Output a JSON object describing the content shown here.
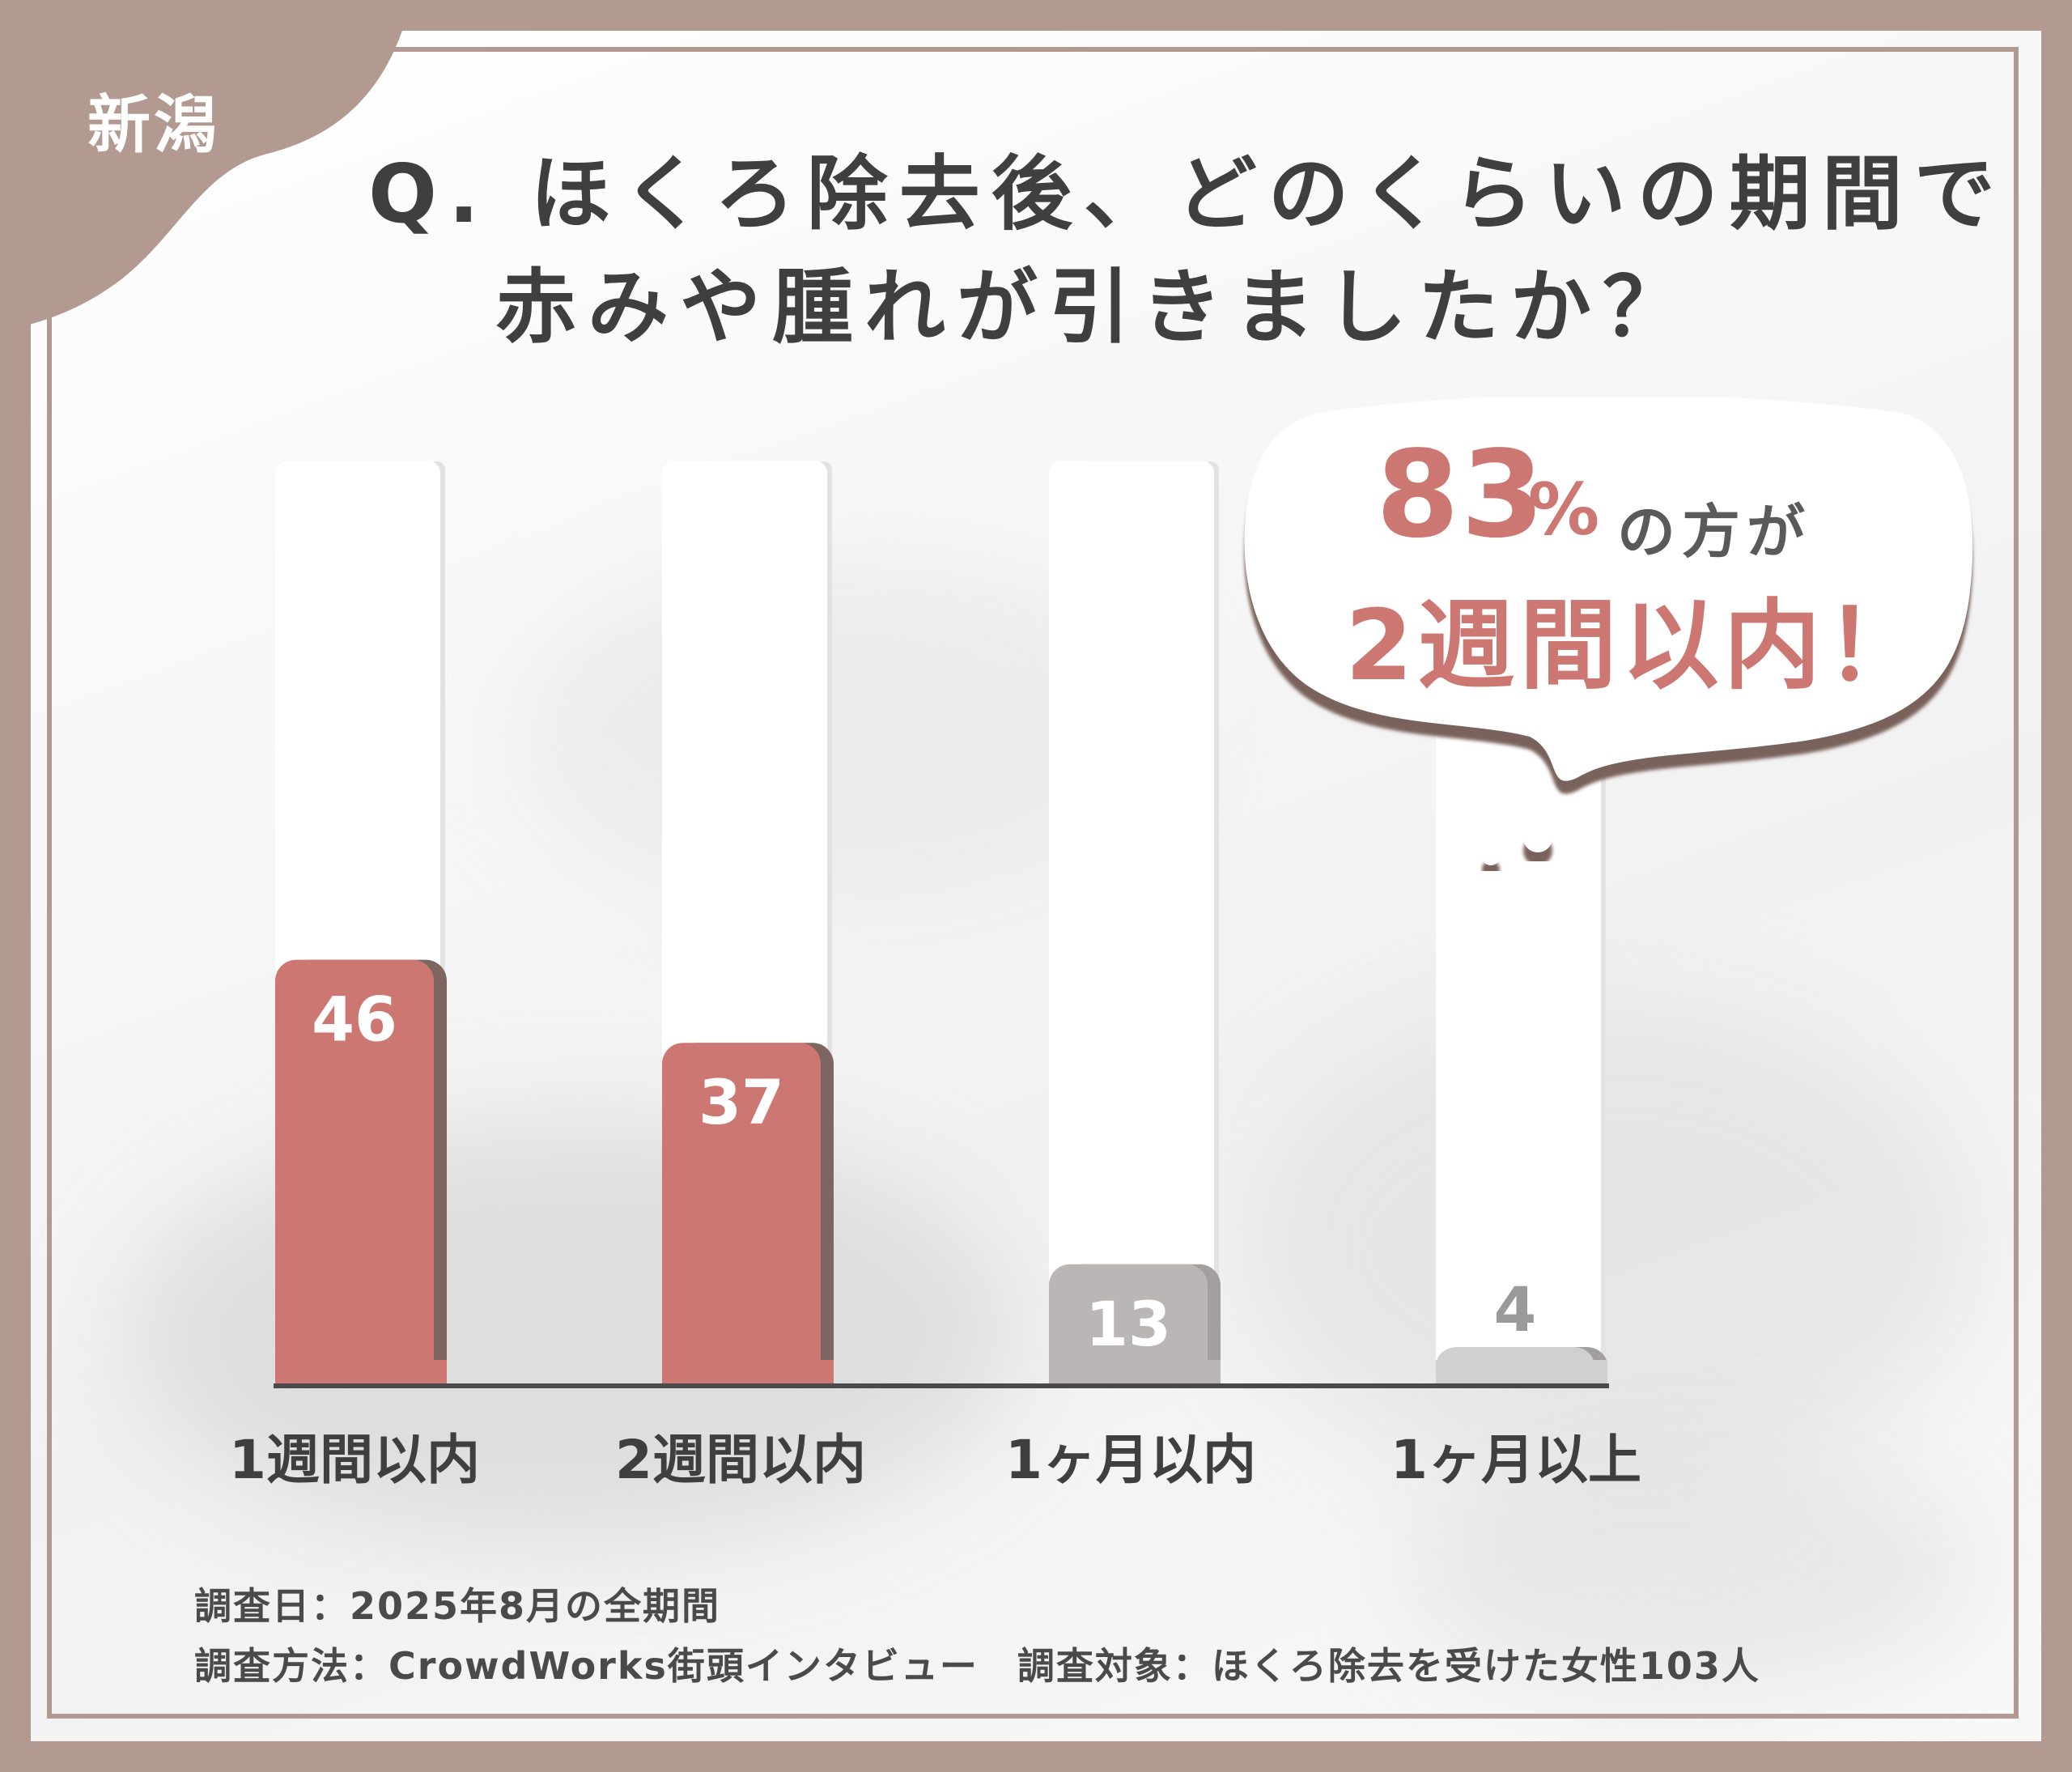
{
  "badge": {
    "region": "新潟"
  },
  "title": {
    "line1": "Q. ほくろ除去後、どのくらいの期間で",
    "line2": "赤みや腫れが引きましたか？"
  },
  "callout": {
    "percent": "83",
    "unit": "%",
    "who": "の方が",
    "period": "2週間以内！"
  },
  "chart_data": {
    "type": "bar",
    "categories": [
      "1週間以内",
      "2週間以内",
      "1ヶ月以内",
      "1ヶ月以上"
    ],
    "values": [
      46,
      37,
      13,
      4
    ],
    "title": "",
    "xlabel": "",
    "ylabel": "",
    "ylim": [
      0,
      100
    ],
    "grid": false,
    "bar_colors": [
      "#cd7772",
      "#cd7772",
      "#bab6b5",
      "#d2d0cf"
    ],
    "label_colors": [
      "#ffffff",
      "#ffffff",
      "#ffffff",
      "#9a9a9a"
    ]
  },
  "footer": {
    "line1": "調査日：2025年8月の全期間",
    "line2": "調査方法：CrowdWorks街頭インタビュー　調査対象：ほくろ除去を受けた女性103人"
  },
  "colors": {
    "background": "#b29a91",
    "accent": "#cd7772",
    "text": "#3f3f3f"
  }
}
